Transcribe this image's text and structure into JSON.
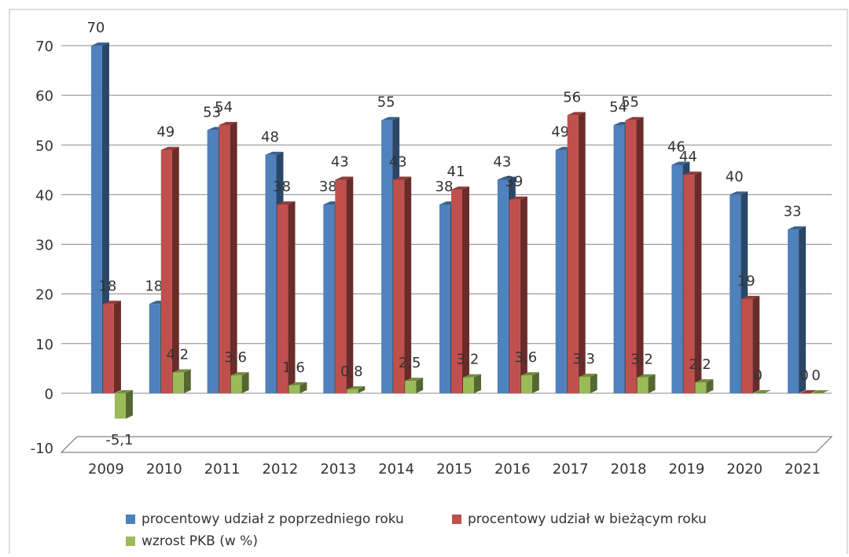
{
  "chart_data": {
    "type": "bar3d",
    "categories": [
      "2009",
      "2010",
      "2011",
      "2012",
      "2013",
      "2014",
      "2015",
      "2016",
      "2017",
      "2018",
      "2019",
      "2020",
      "2021"
    ],
    "series": [
      {
        "name": "procentowy udział z poprzedniego roku",
        "color": "#4f81bd",
        "values": [
          70,
          18,
          53,
          48,
          38,
          55,
          38,
          43,
          49,
          54,
          46,
          40,
          33
        ]
      },
      {
        "name": "procentowy udział w bieżącym roku",
        "color": "#c0504d",
        "values": [
          18,
          49,
          54,
          38,
          43,
          43,
          41,
          39,
          56,
          55,
          44,
          19,
          0
        ]
      },
      {
        "name": "wzrost PKB (w %)",
        "color": "#9bbb59",
        "values": [
          -5.1,
          4.2,
          3.6,
          1.6,
          0.8,
          2.5,
          3.2,
          3.6,
          3.3,
          3.2,
          2.2,
          0,
          0
        ],
        "value_labels": [
          "-5,1",
          "4,2",
          "3,6",
          "1,6",
          "0,8",
          "2,5",
          "3,2",
          "3,6",
          "3,3",
          "3,2",
          "2,2",
          "0",
          "0"
        ]
      }
    ],
    "ylim": [
      -10,
      70
    ],
    "yticks": [
      -10,
      0,
      10,
      20,
      30,
      40,
      50,
      60,
      70
    ],
    "grid": true,
    "legend": "bottom"
  }
}
